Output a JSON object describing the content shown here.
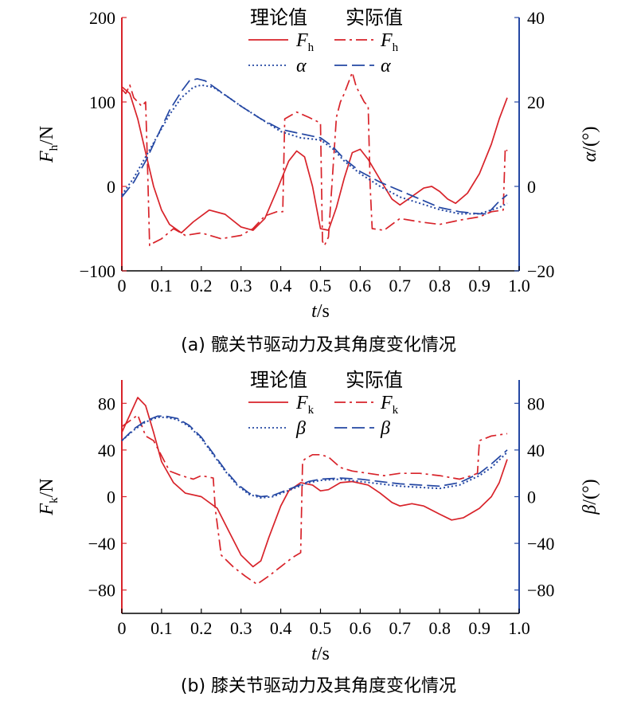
{
  "colors": {
    "theory_force": "#d8232a",
    "actual_force": "#d8232a",
    "theory_angle": "#2447a3",
    "actual_angle": "#2447a3",
    "left_axis": "#d8232a",
    "right_axis": "#2447a3"
  },
  "chart_data": [
    {
      "type": "line",
      "caption": "(a) 髋关节驱动力及其角度变化情况",
      "xlabel_var": "t",
      "xlabel_unit": "/s",
      "ylabel_left_var": "F",
      "ylabel_left_sub": "h",
      "ylabel_left_unit": "/N",
      "ylabel_right_var": "α",
      "ylabel_right_unit": "/(°)",
      "xlim": [
        0,
        1.0
      ],
      "ylim_left": [
        -100,
        200
      ],
      "ylim_right": [
        -20,
        40
      ],
      "xticks": [
        "0",
        "0.1",
        "0.2",
        "0.3",
        "0.4",
        "0.5",
        "0.6",
        "0.7",
        "0.8",
        "0.9",
        "1.0"
      ],
      "yticks_left": [
        "-100",
        "0",
        "100",
        "200"
      ],
      "yticks_right": [
        "-20",
        "0",
        "20",
        "40"
      ],
      "legend": {
        "header_theory": "理论值",
        "header_actual": "实际值",
        "force_var": "F",
        "force_sub": "h",
        "angle_var": "α",
        "placement": "top-center"
      },
      "series": [
        {
          "key": "theory_force",
          "axis": "left",
          "style": "solid",
          "x": [
            0,
            0.02,
            0.04,
            0.06,
            0.08,
            0.1,
            0.12,
            0.15,
            0.18,
            0.22,
            0.26,
            0.3,
            0.33,
            0.36,
            0.39,
            0.42,
            0.44,
            0.46,
            0.48,
            0.5,
            0.52,
            0.54,
            0.56,
            0.58,
            0.6,
            0.62,
            0.65,
            0.68,
            0.7,
            0.73,
            0.76,
            0.78,
            0.8,
            0.82,
            0.84,
            0.87,
            0.9,
            0.93,
            0.95,
            0.97
          ],
          "y": [
            118,
            110,
            80,
            40,
            0,
            -28,
            -45,
            -55,
            -42,
            -28,
            -33,
            -48,
            -52,
            -38,
            -5,
            30,
            42,
            35,
            0,
            -50,
            -52,
            -25,
            10,
            40,
            44,
            32,
            8,
            -15,
            -22,
            -12,
            -2,
            0,
            -6,
            -15,
            -20,
            -8,
            15,
            50,
            80,
            105
          ]
        },
        {
          "key": "actual_force",
          "axis": "left",
          "style": "dashdot",
          "x": [
            0,
            0.01,
            0.02,
            0.03,
            0.04,
            0.05,
            0.06,
            0.065,
            0.07,
            0.075,
            0.1,
            0.13,
            0.16,
            0.2,
            0.25,
            0.3,
            0.33,
            0.36,
            0.39,
            0.405,
            0.41,
            0.44,
            0.47,
            0.5,
            0.505,
            0.51,
            0.52,
            0.54,
            0.55,
            0.56,
            0.58,
            0.59,
            0.61,
            0.62,
            0.625,
            0.63,
            0.66,
            0.7,
            0.75,
            0.8,
            0.85,
            0.9,
            0.93,
            0.96,
            0.965,
            0.97
          ],
          "y": [
            115,
            110,
            120,
            105,
            100,
            95,
            100,
            20,
            -70,
            -68,
            -62,
            -50,
            -58,
            -55,
            -62,
            -58,
            -50,
            -35,
            -30,
            -30,
            80,
            88,
            82,
            75,
            -65,
            -70,
            -60,
            82,
            100,
            110,
            135,
            118,
            100,
            95,
            0,
            -50,
            -52,
            -38,
            -42,
            -45,
            -40,
            -36,
            -30,
            -28,
            45,
            42
          ]
        },
        {
          "key": "theory_angle",
          "axis": "right",
          "style": "dotted",
          "x": [
            0,
            0.03,
            0.06,
            0.09,
            0.12,
            0.15,
            0.18,
            0.2,
            0.23,
            0.27,
            0.3,
            0.35,
            0.4,
            0.45,
            0.5,
            0.53,
            0.56,
            0.6,
            0.65,
            0.7,
            0.75,
            0.8,
            0.85,
            0.9,
            0.95,
            0.97
          ],
          "y": [
            -2,
            2,
            7,
            12,
            17,
            21,
            23.5,
            24,
            23.5,
            21,
            19,
            16,
            13,
            11.5,
            11,
            9,
            6,
            3,
            0,
            -2.5,
            -4,
            -5.5,
            -6.5,
            -6.5,
            -5,
            -4
          ]
        },
        {
          "key": "actual_angle",
          "axis": "right",
          "style": "dashed",
          "x": [
            0,
            0.03,
            0.06,
            0.09,
            0.12,
            0.15,
            0.17,
            0.19,
            0.21,
            0.24,
            0.27,
            0.3,
            0.35,
            0.4,
            0.45,
            0.5,
            0.53,
            0.56,
            0.6,
            0.65,
            0.7,
            0.75,
            0.8,
            0.85,
            0.9,
            0.92,
            0.95,
            0.97
          ],
          "y": [
            -2.5,
            1,
            6,
            12,
            18,
            22.5,
            25,
            25.5,
            25,
            23,
            21,
            19,
            16,
            13.5,
            12.5,
            11.5,
            9.5,
            6.5,
            3.5,
            1,
            -1,
            -3,
            -5,
            -6,
            -6.5,
            -6.5,
            -3.5,
            -2
          ]
        }
      ]
    },
    {
      "type": "line",
      "caption": "(b) 膝关节驱动力及其角度变化情况",
      "xlabel_var": "t",
      "xlabel_unit": "/s",
      "ylabel_left_var": "F",
      "ylabel_left_sub": "k",
      "ylabel_left_unit": "/N",
      "ylabel_right_var": "β",
      "ylabel_right_unit": "/(°)",
      "xlim": [
        0,
        1.0
      ],
      "ylim_left": [
        -100,
        100
      ],
      "ylim_right": [
        -100,
        100
      ],
      "xticks": [
        "0",
        "0.1",
        "0.2",
        "0.3",
        "0.4",
        "0.5",
        "0.6",
        "0.7",
        "0.8",
        "0.9",
        "1.0"
      ],
      "yticks_left": [
        "-80",
        "-40",
        "0",
        "40",
        "80"
      ],
      "yticks_right": [
        "-80",
        "-40",
        "0",
        "40",
        "80"
      ],
      "legend": {
        "header_theory": "理论值",
        "header_actual": "实际值",
        "force_var": "F",
        "force_sub": "k",
        "angle_var": "β",
        "placement": "top-center"
      },
      "series": [
        {
          "key": "theory_force",
          "axis": "left",
          "style": "solid",
          "x": [
            0,
            0.02,
            0.04,
            0.06,
            0.08,
            0.1,
            0.13,
            0.16,
            0.2,
            0.24,
            0.27,
            0.3,
            0.33,
            0.35,
            0.37,
            0.4,
            0.42,
            0.45,
            0.48,
            0.5,
            0.52,
            0.55,
            0.58,
            0.62,
            0.65,
            0.68,
            0.7,
            0.73,
            0.76,
            0.8,
            0.83,
            0.86,
            0.9,
            0.93,
            0.95,
            0.97
          ],
          "y": [
            55,
            70,
            85,
            78,
            55,
            30,
            12,
            3,
            0,
            -10,
            -30,
            -50,
            -60,
            -55,
            -35,
            -8,
            5,
            12,
            10,
            5,
            6,
            12,
            13,
            10,
            3,
            -5,
            -8,
            -6,
            -8,
            -15,
            -20,
            -18,
            -10,
            0,
            12,
            32
          ]
        },
        {
          "key": "actual_force",
          "axis": "left",
          "style": "dashdot",
          "x": [
            0,
            0.02,
            0.04,
            0.06,
            0.08,
            0.1,
            0.12,
            0.15,
            0.18,
            0.2,
            0.23,
            0.235,
            0.25,
            0.28,
            0.31,
            0.34,
            0.37,
            0.4,
            0.43,
            0.45,
            0.455,
            0.46,
            0.48,
            0.5,
            0.52,
            0.55,
            0.58,
            0.62,
            0.66,
            0.7,
            0.75,
            0.8,
            0.85,
            0.88,
            0.895,
            0.9,
            0.93,
            0.97
          ],
          "y": [
            60,
            65,
            70,
            52,
            48,
            35,
            22,
            18,
            15,
            18,
            16,
            -10,
            -50,
            -60,
            -68,
            -75,
            -68,
            -60,
            -52,
            -48,
            30,
            32,
            36,
            36,
            34,
            25,
            22,
            20,
            18,
            20,
            20,
            18,
            15,
            18,
            20,
            48,
            52,
            54
          ]
        },
        {
          "key": "theory_angle",
          "axis": "right",
          "style": "dotted",
          "x": [
            0,
            0.03,
            0.06,
            0.09,
            0.11,
            0.14,
            0.17,
            0.2,
            0.23,
            0.26,
            0.29,
            0.32,
            0.35,
            0.38,
            0.41,
            0.44,
            0.47,
            0.5,
            0.55,
            0.6,
            0.65,
            0.7,
            0.75,
            0.8,
            0.85,
            0.9,
            0.93,
            0.97
          ],
          "y": [
            48,
            57,
            64,
            68,
            68,
            66,
            60,
            50,
            36,
            22,
            10,
            2,
            -1,
            0,
            4,
            8,
            12,
            14,
            15,
            13,
            11,
            9,
            8,
            7,
            10,
            18,
            25,
            38
          ]
        },
        {
          "key": "actual_angle",
          "axis": "right",
          "style": "dashed",
          "x": [
            0,
            0.03,
            0.06,
            0.09,
            0.11,
            0.14,
            0.17,
            0.2,
            0.23,
            0.26,
            0.29,
            0.32,
            0.35,
            0.38,
            0.41,
            0.44,
            0.47,
            0.5,
            0.55,
            0.6,
            0.65,
            0.7,
            0.75,
            0.8,
            0.85,
            0.9,
            0.93,
            0.97
          ],
          "y": [
            48,
            58,
            65,
            69,
            69,
            67,
            61,
            51,
            37,
            23,
            11,
            3,
            0,
            1,
            5,
            9,
            13,
            15,
            16,
            15,
            13,
            11,
            10,
            9,
            12,
            20,
            28,
            40
          ]
        }
      ]
    }
  ]
}
